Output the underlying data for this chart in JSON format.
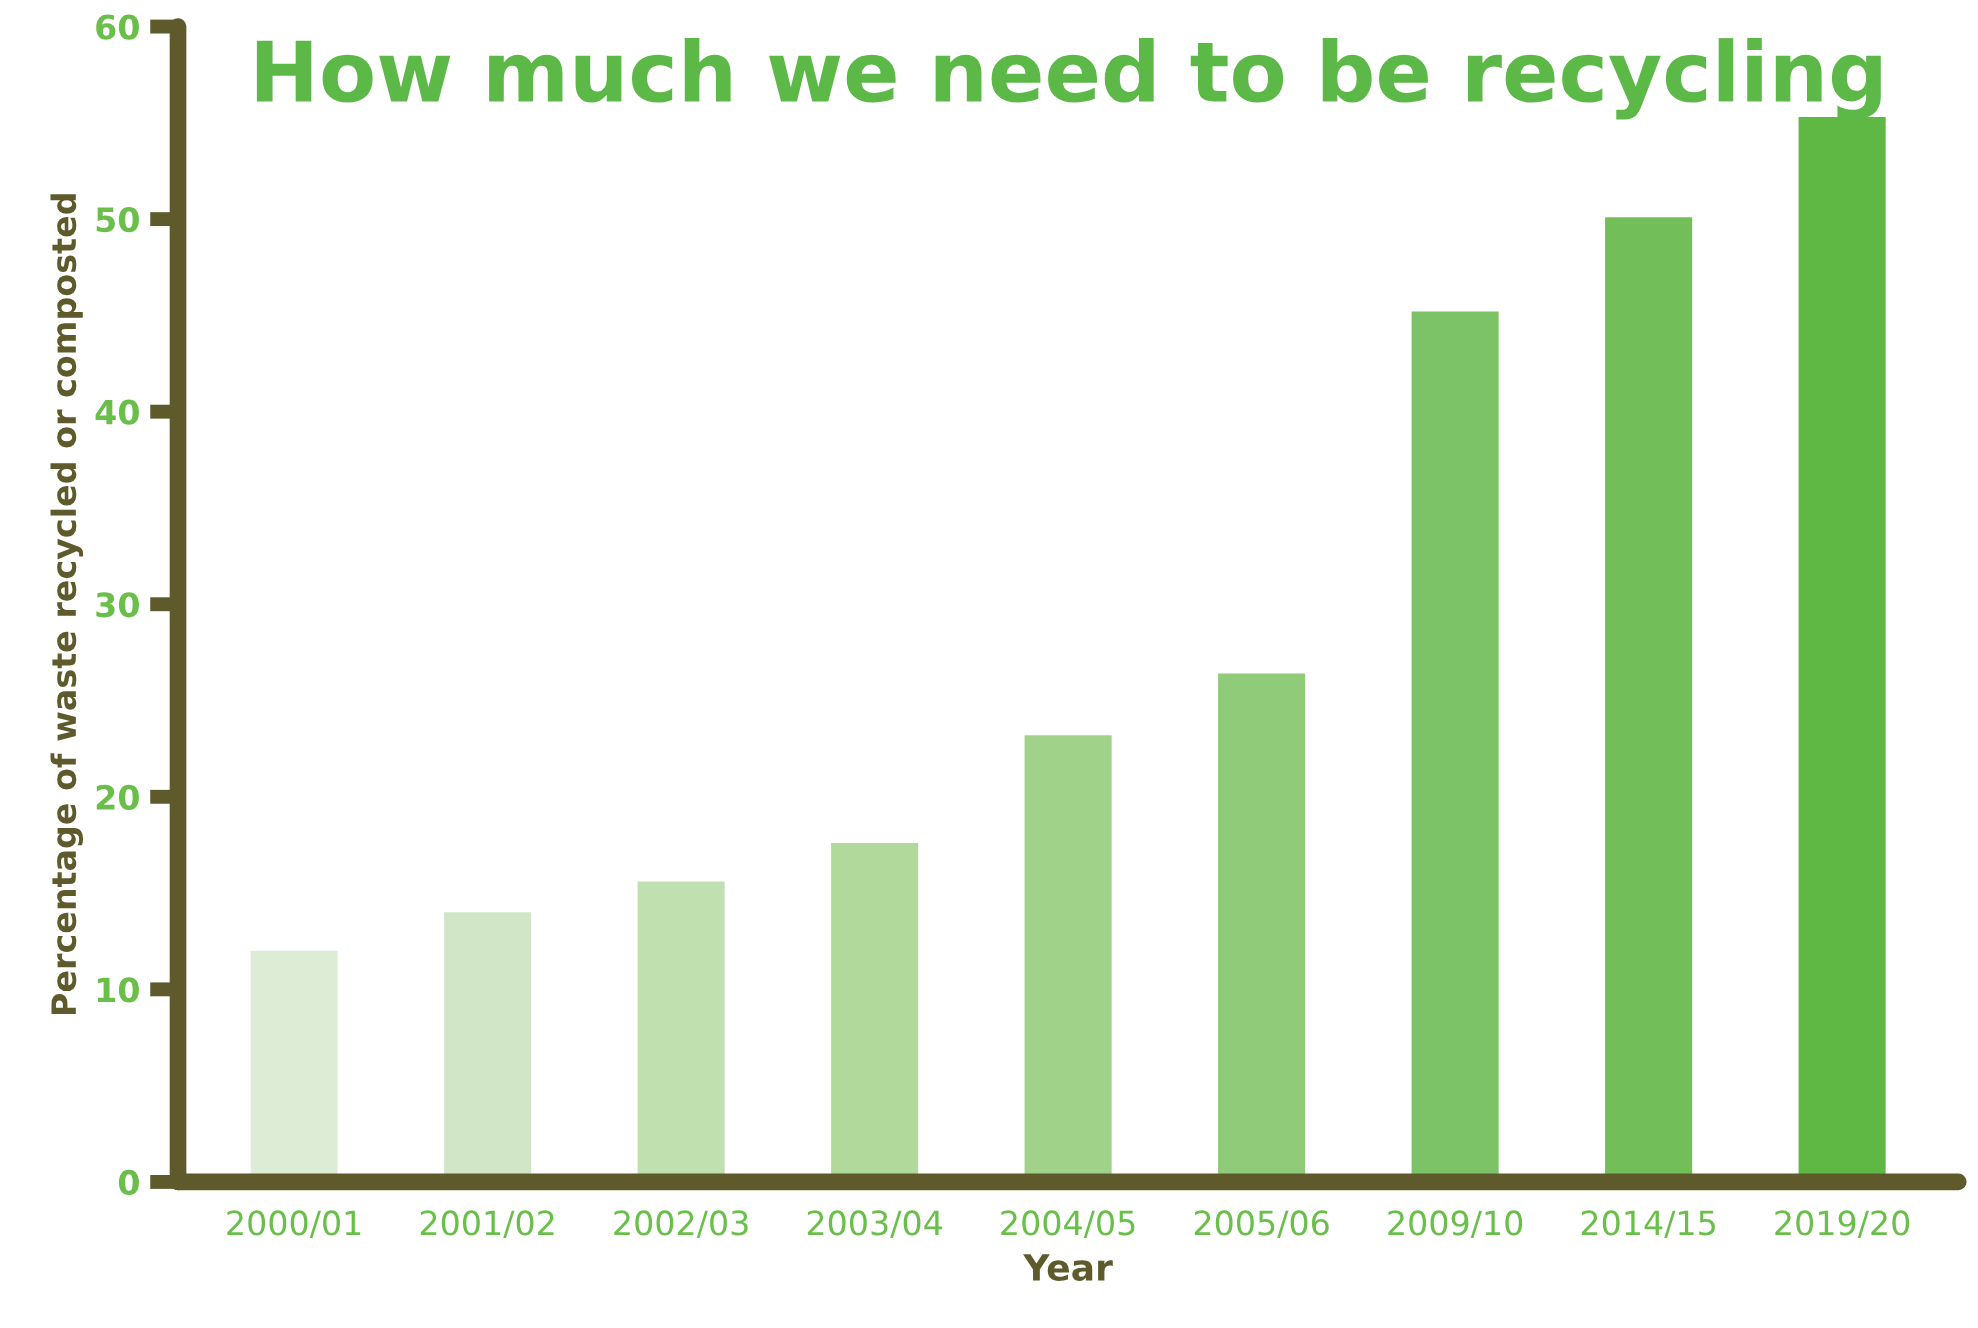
{
  "chart_data": {
    "type": "bar",
    "title": "How much we need to be recycling",
    "xlabel": "Year",
    "ylabel": "Percentage of waste recycled or composted",
    "categories": [
      "2000/01",
      "2001/02",
      "2002/03",
      "2003/04",
      "2004/05",
      "2005/06",
      "2009/10",
      "2014/15",
      "2019/20"
    ],
    "values": [
      12,
      14,
      15.6,
      17.6,
      23.2,
      26.4,
      45.2,
      50.1,
      55.3
    ],
    "colors": [
      "#ddecd5",
      "#d1e6c6",
      "#c1e0b0",
      "#b0d99b",
      "#a1d28a",
      "#8fcb78",
      "#7cc266",
      "#72bf59",
      "#5fb843"
    ],
    "ylim": [
      0,
      60
    ],
    "yticks": [
      0,
      10,
      20,
      30,
      40,
      50,
      60
    ],
    "grid": false,
    "legend": false
  }
}
